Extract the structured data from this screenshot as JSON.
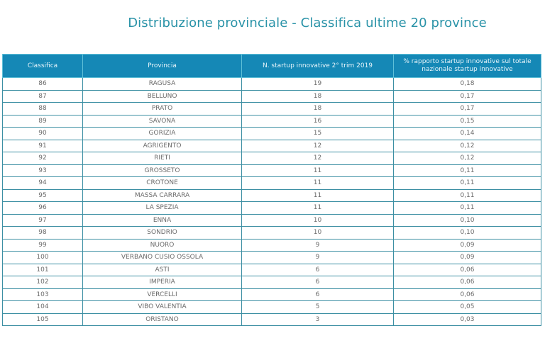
{
  "title": "Distribuzione provinciale - Classifica ultime 20 province",
  "table": {
    "headers": [
      "Classifica",
      "Provincia",
      "N. startup innovative 2° trim 2019",
      "% rapporto startup innovative sul totale nazionale startup innovative"
    ],
    "rows": [
      {
        "rank": "86",
        "province": "RAGUSA",
        "count": "19",
        "percent": "0,18"
      },
      {
        "rank": "87",
        "province": "BELLUNO",
        "count": "18",
        "percent": "0,17"
      },
      {
        "rank": "88",
        "province": "PRATO",
        "count": "18",
        "percent": "0,17"
      },
      {
        "rank": "89",
        "province": "SAVONA",
        "count": "16",
        "percent": "0,15"
      },
      {
        "rank": "90",
        "province": "GORIZIA",
        "count": "15",
        "percent": "0,14"
      },
      {
        "rank": "91",
        "province": "AGRIGENTO",
        "count": "12",
        "percent": "0,12"
      },
      {
        "rank": "92",
        "province": "RIETI",
        "count": "12",
        "percent": "0,12"
      },
      {
        "rank": "93",
        "province": "GROSSETO",
        "count": "11",
        "percent": "0,11"
      },
      {
        "rank": "94",
        "province": "CROTONE",
        "count": "11",
        "percent": "0,11"
      },
      {
        "rank": "95",
        "province": "MASSA CARRARA",
        "count": "11",
        "percent": "0,11"
      },
      {
        "rank": "96",
        "province": "LA SPEZIA",
        "count": "11",
        "percent": "0,11"
      },
      {
        "rank": "97",
        "province": "ENNA",
        "count": "10",
        "percent": "0,10"
      },
      {
        "rank": "98",
        "province": "SONDRIO",
        "count": "10",
        "percent": "0,10"
      },
      {
        "rank": "99",
        "province": "NUORO",
        "count": "9",
        "percent": "0,09"
      },
      {
        "rank": "100",
        "province": "VERBANO CUSIO OSSOLA",
        "count": "9",
        "percent": "0,09"
      },
      {
        "rank": "101",
        "province": "ASTI",
        "count": "6",
        "percent": "0,06"
      },
      {
        "rank": "102",
        "province": "IMPERIA",
        "count": "6",
        "percent": "0,06"
      },
      {
        "rank": "103",
        "province": "VERCELLI",
        "count": "6",
        "percent": "0,06"
      },
      {
        "rank": "104",
        "province": "VIBO VALENTIA",
        "count": "5",
        "percent": "0,05"
      },
      {
        "rank": "105",
        "province": "ORISTANO",
        "count": "3",
        "percent": "0,03"
      }
    ]
  },
  "colors": {
    "title": "#2a93a8",
    "header_bg": "#1588b6",
    "header_text": "#e6f4fa",
    "border": "#3c8fa3",
    "cell_text": "#6a6a6a"
  }
}
